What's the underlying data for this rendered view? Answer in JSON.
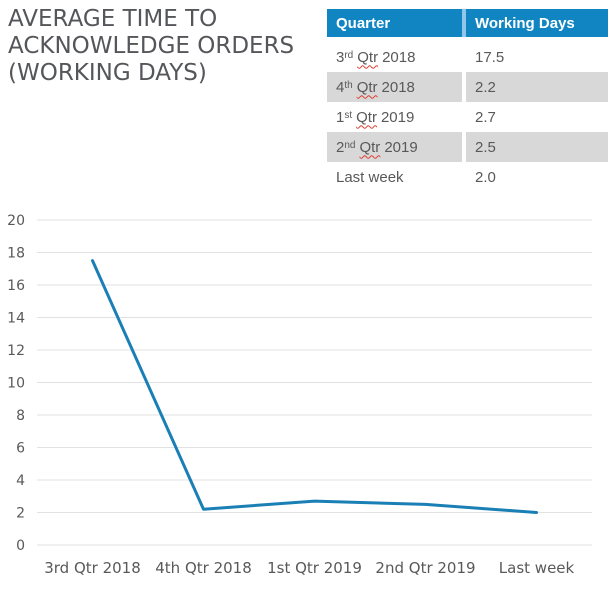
{
  "title": "AVERAGE TIME TO ACKNOWLEDGE ORDERS (WORKING DAYS)",
  "table": {
    "headers": [
      "Quarter",
      "Working Days"
    ],
    "rows": [
      {
        "prefix": "3",
        "ordinal": "rd",
        "word": "Qtr",
        "year": "2018",
        "days": "17.5"
      },
      {
        "prefix": "4",
        "ordinal": "th",
        "word": "Qtr",
        "year": "2018",
        "days": "2.2"
      },
      {
        "prefix": "1",
        "ordinal": "st",
        "word": "Qtr",
        "year": "2019",
        "days": "2.7"
      },
      {
        "prefix": "2",
        "ordinal": "nd",
        "word": "Qtr",
        "year": "2019",
        "days": "2.5"
      },
      {
        "prefix": "Last week",
        "ordinal": "",
        "word": "",
        "year": "",
        "days": "2.0"
      }
    ]
  },
  "chart_data": {
    "type": "line",
    "categories": [
      "3rd Qtr 2018",
      "4th Qtr 2018",
      "1st Qtr 2019",
      "2nd Qtr 2019",
      "Last week"
    ],
    "values": [
      17.5,
      2.2,
      2.7,
      2.5,
      2.0
    ],
    "title": "",
    "xlabel": "",
    "ylabel": "",
    "ylim": [
      0,
      20
    ],
    "ytick": 2,
    "grid": true,
    "legend": "none",
    "line_color": "#1A7FB5"
  },
  "colors": {
    "header_bg": "#1185C2",
    "header_divider": "#8FC6E9",
    "header_text": "#FFFFFF",
    "row_alt_bg": "#D8D8D8",
    "row_bg": "#FFFFFF",
    "body_text": "#595959",
    "title_text": "#55565A",
    "gridline": "#E2E2E2",
    "axis_label": "#595959",
    "spellcheck_underline": "#E03C31"
  }
}
